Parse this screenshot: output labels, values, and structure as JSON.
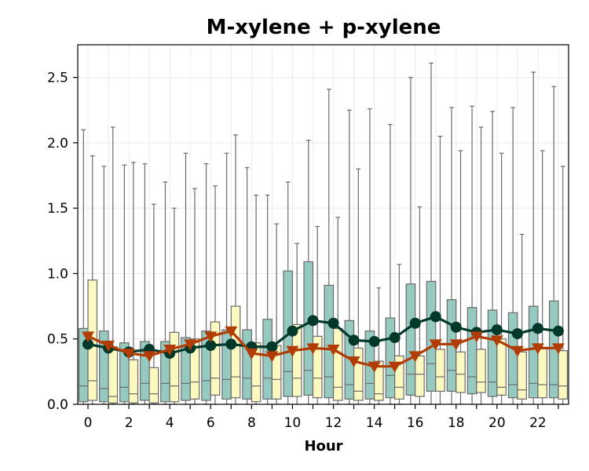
{
  "chart_data": {
    "type": "box",
    "title": "M-xylene + p-xylene",
    "xlabel": "Hour",
    "ylabel": "",
    "xlim": [
      -0.5,
      23.5
    ],
    "ylim": [
      0,
      2.75
    ],
    "grid": true,
    "x_ticks": [
      0,
      2,
      4,
      6,
      8,
      10,
      12,
      14,
      16,
      18,
      20,
      22
    ],
    "x_tick_labels": [
      "0",
      "2",
      "4",
      "6",
      "8",
      "10",
      "12",
      "14",
      "16",
      "18",
      "20",
      "22"
    ],
    "y_ticks": [
      0.0,
      0.5,
      1.0,
      1.5,
      2.0,
      2.5
    ],
    "y_tick_labels": [
      "0.0",
      "0.5",
      "1.0",
      "1.5",
      "2.0",
      "2.5"
    ],
    "colors": {
      "box_a_fill": "#96c9c0",
      "box_b_fill": "#fbf8c0",
      "box_edge": "#6b6b6b",
      "line_a": "#00382a",
      "line_b": "#b23c05",
      "grid": "#ebebeb"
    },
    "series": [
      {
        "role": "box",
        "fill_key": "box_a_fill",
        "offset": -0.22,
        "boxes": [
          {
            "hour": 0,
            "q1": 0.02,
            "median": 0.14,
            "q3": 0.58,
            "whisker_low": 0.0,
            "whisker_high": 2.1
          },
          {
            "hour": 1,
            "q1": 0.02,
            "median": 0.12,
            "q3": 0.56,
            "whisker_low": 0.0,
            "whisker_high": 1.82
          },
          {
            "hour": 2,
            "q1": 0.02,
            "median": 0.13,
            "q3": 0.47,
            "whisker_low": 0.0,
            "whisker_high": 1.83
          },
          {
            "hour": 3,
            "q1": 0.03,
            "median": 0.16,
            "q3": 0.48,
            "whisker_low": 0.0,
            "whisker_high": 1.84
          },
          {
            "hour": 4,
            "q1": 0.02,
            "median": 0.16,
            "q3": 0.48,
            "whisker_low": 0.0,
            "whisker_high": 1.7
          },
          {
            "hour": 5,
            "q1": 0.03,
            "median": 0.16,
            "q3": 0.51,
            "whisker_low": 0.0,
            "whisker_high": 1.92
          },
          {
            "hour": 6,
            "q1": 0.03,
            "median": 0.18,
            "q3": 0.56,
            "whisker_low": 0.0,
            "whisker_high": 1.84
          },
          {
            "hour": 7,
            "q1": 0.04,
            "median": 0.19,
            "q3": 0.57,
            "whisker_low": 0.0,
            "whisker_high": 1.92
          },
          {
            "hour": 8,
            "q1": 0.04,
            "median": 0.2,
            "q3": 0.57,
            "whisker_low": 0.0,
            "whisker_high": 1.81
          },
          {
            "hour": 9,
            "q1": 0.04,
            "median": 0.2,
            "q3": 0.65,
            "whisker_low": 0.0,
            "whisker_high": 1.6
          },
          {
            "hour": 10,
            "q1": 0.06,
            "median": 0.25,
            "q3": 1.02,
            "whisker_low": 0.0,
            "whisker_high": 1.7
          },
          {
            "hour": 11,
            "q1": 0.07,
            "median": 0.26,
            "q3": 1.09,
            "whisker_low": 0.0,
            "whisker_high": 2.02
          },
          {
            "hour": 12,
            "q1": 0.05,
            "median": 0.21,
            "q3": 0.91,
            "whisker_low": 0.0,
            "whisker_high": 2.41
          },
          {
            "hour": 13,
            "q1": 0.04,
            "median": 0.15,
            "q3": 0.64,
            "whisker_low": 0.0,
            "whisker_high": 2.25
          },
          {
            "hour": 14,
            "q1": 0.04,
            "median": 0.16,
            "q3": 0.56,
            "whisker_low": 0.0,
            "whisker_high": 2.26
          },
          {
            "hour": 15,
            "q1": 0.05,
            "median": 0.22,
            "q3": 0.66,
            "whisker_low": 0.0,
            "whisker_high": 2.14
          },
          {
            "hour": 16,
            "q1": 0.07,
            "median": 0.23,
            "q3": 0.92,
            "whisker_low": 0.0,
            "whisker_high": 2.5
          },
          {
            "hour": 17,
            "q1": 0.1,
            "median": 0.31,
            "q3": 0.94,
            "whisker_low": 0.0,
            "whisker_high": 2.61
          },
          {
            "hour": 18,
            "q1": 0.1,
            "median": 0.26,
            "q3": 0.8,
            "whisker_low": 0.0,
            "whisker_high": 2.27
          },
          {
            "hour": 19,
            "q1": 0.08,
            "median": 0.21,
            "q3": 0.74,
            "whisker_low": 0.0,
            "whisker_high": 2.28
          },
          {
            "hour": 20,
            "q1": 0.06,
            "median": 0.17,
            "q3": 0.72,
            "whisker_low": 0.0,
            "whisker_high": 2.24
          },
          {
            "hour": 21,
            "q1": 0.05,
            "median": 0.15,
            "q3": 0.7,
            "whisker_low": 0.0,
            "whisker_high": 2.27
          },
          {
            "hour": 22,
            "q1": 0.05,
            "median": 0.16,
            "q3": 0.75,
            "whisker_low": 0.0,
            "whisker_high": 2.54
          },
          {
            "hour": 23,
            "q1": 0.05,
            "median": 0.15,
            "q3": 0.79,
            "whisker_low": 0.0,
            "whisker_high": 2.43
          }
        ]
      },
      {
        "role": "box",
        "fill_key": "box_b_fill",
        "offset": 0.22,
        "boxes": [
          {
            "hour": 0,
            "q1": 0.03,
            "median": 0.18,
            "q3": 0.95,
            "whisker_low": 0.0,
            "whisker_high": 1.9
          },
          {
            "hour": 1,
            "q1": 0.01,
            "median": 0.06,
            "q3": 0.44,
            "whisker_low": 0.0,
            "whisker_high": 2.12
          },
          {
            "hour": 2,
            "q1": 0.01,
            "median": 0.08,
            "q3": 0.34,
            "whisker_low": 0.0,
            "whisker_high": 1.85
          },
          {
            "hour": 3,
            "q1": 0.01,
            "median": 0.08,
            "q3": 0.28,
            "whisker_low": 0.0,
            "whisker_high": 1.53
          },
          {
            "hour": 4,
            "q1": 0.02,
            "median": 0.14,
            "q3": 0.55,
            "whisker_low": 0.0,
            "whisker_high": 1.5
          },
          {
            "hour": 5,
            "q1": 0.04,
            "median": 0.17,
            "q3": 0.5,
            "whisker_low": 0.0,
            "whisker_high": 1.65
          },
          {
            "hour": 6,
            "q1": 0.07,
            "median": 0.2,
            "q3": 0.63,
            "whisker_low": 0.0,
            "whisker_high": 1.67
          },
          {
            "hour": 7,
            "q1": 0.05,
            "median": 0.21,
            "q3": 0.75,
            "whisker_low": 0.0,
            "whisker_high": 2.06
          },
          {
            "hour": 8,
            "q1": 0.02,
            "median": 0.14,
            "q3": 0.47,
            "whisker_low": 0.0,
            "whisker_high": 1.6
          },
          {
            "hour": 9,
            "q1": 0.04,
            "median": 0.19,
            "q3": 0.45,
            "whisker_low": 0.0,
            "whisker_high": 1.38
          },
          {
            "hour": 10,
            "q1": 0.06,
            "median": 0.2,
            "q3": 0.61,
            "whisker_low": 0.0,
            "whisker_high": 1.23
          },
          {
            "hour": 11,
            "q1": 0.05,
            "median": 0.2,
            "q3": 0.52,
            "whisker_low": 0.0,
            "whisker_high": 1.36
          },
          {
            "hour": 12,
            "q1": 0.03,
            "median": 0.13,
            "q3": 0.58,
            "whisker_low": 0.0,
            "whisker_high": 1.43
          },
          {
            "hour": 13,
            "q1": 0.03,
            "median": 0.1,
            "q3": 0.43,
            "whisker_low": 0.0,
            "whisker_high": 1.8
          },
          {
            "hour": 14,
            "q1": 0.03,
            "median": 0.08,
            "q3": 0.33,
            "whisker_low": 0.0,
            "whisker_high": 0.89
          },
          {
            "hour": 15,
            "q1": 0.04,
            "median": 0.13,
            "q3": 0.37,
            "whisker_low": 0.0,
            "whisker_high": 1.07
          },
          {
            "hour": 16,
            "q1": 0.06,
            "median": 0.23,
            "q3": 0.37,
            "whisker_low": 0.0,
            "whisker_high": 1.51
          },
          {
            "hour": 17,
            "q1": 0.1,
            "median": 0.21,
            "q3": 0.42,
            "whisker_low": 0.0,
            "whisker_high": 2.05
          },
          {
            "hour": 18,
            "q1": 0.09,
            "median": 0.23,
            "q3": 0.4,
            "whisker_low": 0.0,
            "whisker_high": 1.94
          },
          {
            "hour": 19,
            "q1": 0.09,
            "median": 0.17,
            "q3": 0.42,
            "whisker_low": 0.0,
            "whisker_high": 2.12
          },
          {
            "hour": 20,
            "q1": 0.07,
            "median": 0.13,
            "q3": 0.5,
            "whisker_low": 0.0,
            "whisker_high": 1.92
          },
          {
            "hour": 21,
            "q1": 0.04,
            "median": 0.11,
            "q3": 0.4,
            "whisker_low": 0.0,
            "whisker_high": 1.3
          },
          {
            "hour": 22,
            "q1": 0.05,
            "median": 0.15,
            "q3": 0.43,
            "whisker_low": 0.0,
            "whisker_high": 1.94
          },
          {
            "hour": 23,
            "q1": 0.04,
            "median": 0.14,
            "q3": 0.41,
            "whisker_low": 0.0,
            "whisker_high": 1.82
          }
        ]
      },
      {
        "role": "line",
        "marker": "circle",
        "color_key": "line_a",
        "x": [
          0,
          1,
          2,
          3,
          4,
          5,
          6,
          7,
          8,
          9,
          10,
          11,
          12,
          13,
          14,
          15,
          16,
          17,
          18,
          19,
          20,
          21,
          22,
          23
        ],
        "y": [
          0.46,
          0.43,
          0.4,
          0.42,
          0.39,
          0.43,
          0.45,
          0.46,
          0.44,
          0.44,
          0.56,
          0.64,
          0.62,
          0.49,
          0.48,
          0.51,
          0.62,
          0.67,
          0.59,
          0.55,
          0.57,
          0.54,
          0.58,
          0.56
        ]
      },
      {
        "role": "line",
        "marker": "triangle-down",
        "color_key": "line_b",
        "x": [
          0,
          1,
          2,
          3,
          4,
          5,
          6,
          7,
          8,
          9,
          10,
          11,
          12,
          13,
          14,
          15,
          16,
          17,
          18,
          19,
          20,
          21,
          22,
          23
        ],
        "y": [
          0.52,
          0.45,
          0.39,
          0.37,
          0.42,
          0.46,
          0.52,
          0.56,
          0.39,
          0.37,
          0.41,
          0.43,
          0.42,
          0.33,
          0.29,
          0.29,
          0.37,
          0.46,
          0.46,
          0.52,
          0.49,
          0.41,
          0.43,
          0.43
        ]
      }
    ]
  }
}
